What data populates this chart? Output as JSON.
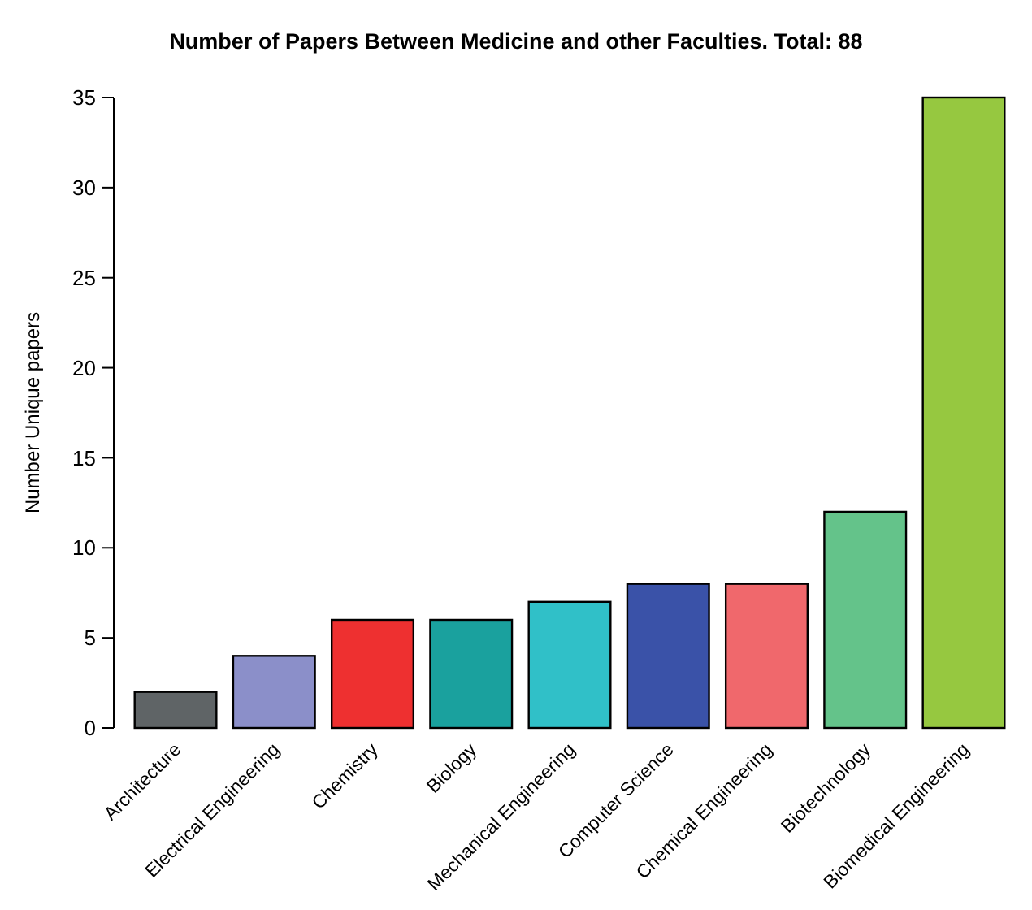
{
  "chart_data": {
    "type": "bar",
    "title": "Number of Papers Between Medicine and other Faculties. Total: 88",
    "ylabel": "Number Unique papers",
    "categories": [
      "Architecture",
      "Electrical Engineering",
      "Chemistry",
      "Biology",
      "Mechanical Engineering",
      "Computer Science",
      "Chemical Engineering",
      "Biotechnology",
      "Biomedical Engineering"
    ],
    "values": [
      2,
      4,
      6,
      6,
      7,
      8,
      8,
      12,
      35
    ],
    "colors": [
      "#5f6466",
      "#8b8fc9",
      "#ee3030",
      "#1aa19e",
      "#30c0c8",
      "#3a52a8",
      "#f0686c",
      "#64c38a",
      "#96c840"
    ],
    "ylim": [
      0,
      35
    ],
    "yticks": [
      0,
      5,
      10,
      15,
      20,
      25,
      30,
      35
    ],
    "grid": false
  }
}
